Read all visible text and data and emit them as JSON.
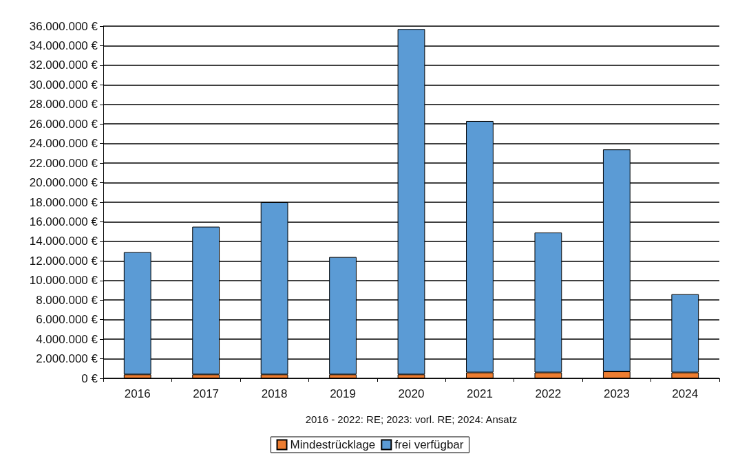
{
  "chart_data": {
    "type": "bar",
    "stacked": true,
    "xlabel": "2016 - 2022: RE; 2023: vorl. RE; 2024: Ansatz",
    "categories": [
      "2016",
      "2017",
      "2018",
      "2019",
      "2020",
      "2021",
      "2022",
      "2023",
      "2024"
    ],
    "series": [
      {
        "name": "Mindestrücklage",
        "color": "#ed7d31",
        "values": [
          400000,
          400000,
          400000,
          400000,
          400000,
          600000,
          600000,
          700000,
          600000
        ]
      },
      {
        "name": "frei verfügbar",
        "color": "#5b9bd5",
        "values": [
          12500000,
          15100000,
          17600000,
          12000000,
          35300000,
          25700000,
          14300000,
          22700000,
          8000000
        ]
      }
    ],
    "ylim": [
      0,
      36000000
    ],
    "yticks": [
      {
        "value": 0,
        "label": "0 €"
      },
      {
        "value": 2000000,
        "label": "2.000.000 €"
      },
      {
        "value": 4000000,
        "label": "4.000.000 €"
      },
      {
        "value": 6000000,
        "label": "6.000.000 €"
      },
      {
        "value": 8000000,
        "label": "8.000.000 €"
      },
      {
        "value": 10000000,
        "label": "10.000.000 €"
      },
      {
        "value": 12000000,
        "label": "12.000.000 €"
      },
      {
        "value": 14000000,
        "label": "14.000.000 €"
      },
      {
        "value": 16000000,
        "label": "16.000.000 €"
      },
      {
        "value": 18000000,
        "label": "18.000.000 €"
      },
      {
        "value": 20000000,
        "label": "20.000.000 €"
      },
      {
        "value": 22000000,
        "label": "22.000.000 €"
      },
      {
        "value": 24000000,
        "label": "24.000.000 €"
      },
      {
        "value": 26000000,
        "label": "26.000.000 €"
      },
      {
        "value": 28000000,
        "label": "28.000.000 €"
      },
      {
        "value": 30000000,
        "label": "30.000.000 €"
      },
      {
        "value": 32000000,
        "label": "32.000.000 €"
      },
      {
        "value": 34000000,
        "label": "34.000.000 €"
      },
      {
        "value": 36000000,
        "label": "36.000.000 €"
      }
    ],
    "grid": "y",
    "legend": "bottom"
  }
}
